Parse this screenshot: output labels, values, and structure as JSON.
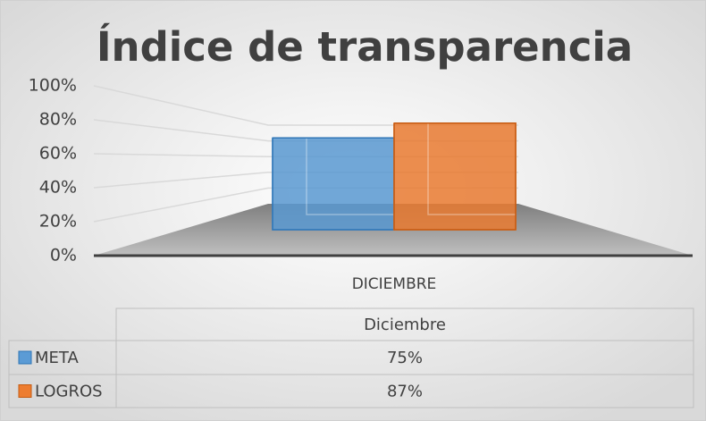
{
  "chart_data": {
    "type": "bar3d",
    "title": "Índice de transparencia",
    "categories": [
      "DICIEMBRE"
    ],
    "table_header": "Diciembre",
    "series": [
      {
        "name": "META",
        "color": "#5b9bd5",
        "values": [
          75
        ],
        "value_labels": [
          "75%"
        ]
      },
      {
        "name": "LOGROS",
        "color": "#ed7d31",
        "values": [
          87
        ],
        "value_labels": [
          "87%"
        ]
      }
    ],
    "ylim": [
      0,
      100
    ],
    "yticks": [
      {
        "value": 0,
        "label": "0%"
      },
      {
        "value": 20,
        "label": "20%"
      },
      {
        "value": 40,
        "label": "40%"
      },
      {
        "value": 60,
        "label": "60%"
      },
      {
        "value": 80,
        "label": "80%"
      },
      {
        "value": 100,
        "label": "100%"
      }
    ],
    "grid": true,
    "data_table": true
  }
}
